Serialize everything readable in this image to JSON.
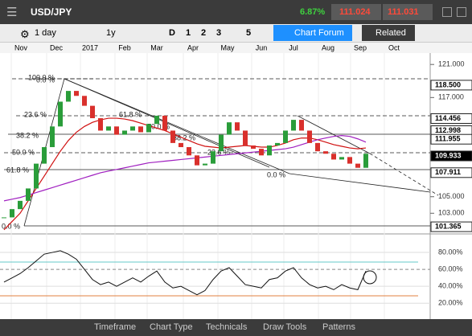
{
  "header": {
    "pair": "USD/JPY",
    "change": "6.87%",
    "sell": "111.024",
    "buy": "111.031"
  },
  "toolbar": {
    "interval": "1 day",
    "range": "1y",
    "periods": [
      "D",
      "1",
      "2",
      "3",
      "5"
    ],
    "forum": "Chart Forum",
    "related": "Related"
  },
  "bottom_bar": {
    "items": [
      "Timeframe",
      "Chart Type",
      "Technicals",
      "Draw Tools",
      "Patterns"
    ]
  },
  "chart_data": {
    "type": "candlestick",
    "months": [
      "Nov",
      "Dec",
      "2017",
      "Feb",
      "Mar",
      "Apr",
      "May",
      "Jun",
      "Jul",
      "Aug",
      "Sep",
      "Oct"
    ],
    "values": [
      102.5,
      103.5,
      104.5,
      106,
      109,
      111,
      113.5,
      116.5,
      117.8,
      117.2,
      116,
      114.5,
      113,
      113.5,
      112.5,
      113,
      113.5,
      112.8,
      113.8,
      114.8,
      113,
      111.5,
      111,
      110,
      108.8,
      109,
      110.5,
      112.5,
      114,
      113,
      111.2,
      110.8,
      110,
      111.2,
      111.5,
      113,
      114.3,
      113,
      111.5,
      110.5,
      110.2,
      109.5,
      109.8,
      109,
      108.5,
      110.2
    ],
    "red_average": [
      101,
      102,
      103,
      104.5,
      106,
      107.5,
      109,
      110.5,
      111.8,
      112.8,
      113.5,
      114,
      114.3,
      114.5,
      114.5,
      114.4,
      114.2,
      113.9,
      113.6,
      113.3,
      113,
      112.6,
      112.2,
      111.8,
      111.4,
      111.1,
      111,
      110.9,
      111,
      111.1,
      111.2,
      111.1,
      111,
      111,
      111.2,
      111.5,
      111.9,
      112.1,
      112.1,
      111.9,
      111.6,
      111.3,
      111.1,
      110.9,
      110.8,
      110.9
    ],
    "purple_average": [
      104.5,
      104.7,
      104.9,
      105.2,
      105.5,
      105.8,
      106.1,
      106.4,
      106.7,
      107,
      107.3,
      107.6,
      107.9,
      108.1,
      108.3,
      108.5,
      108.7,
      108.9,
      109.1,
      109.2,
      109.3,
      109.4,
      109.5,
      109.6,
      109.7,
      109.8,
      109.9,
      110,
      110.1,
      110.2,
      110.3,
      110.4,
      110.5,
      110.6,
      110.7,
      110.8,
      111,
      111.3,
      111.6,
      111.9,
      112.1,
      112.3,
      112.4,
      112.3,
      112,
      111.6
    ],
    "ylim": [
      100.5,
      121.7
    ],
    "yticks": [
      {
        "value": 121,
        "label": "121.000"
      },
      {
        "value": 117,
        "label": "117.000"
      },
      {
        "value": 105,
        "label": "105.000"
      },
      {
        "value": 103,
        "label": "103.000"
      }
    ],
    "price_tags": [
      {
        "value": 118.5,
        "label": "118.500"
      },
      {
        "value": 114.456,
        "label": "114.456"
      },
      {
        "value": 112.998,
        "label": "112.998"
      },
      {
        "value": 111.955,
        "label": "111.955"
      },
      {
        "value": 109.933,
        "label": "109.933"
      },
      {
        "value": 107.911,
        "label": "107.911"
      },
      {
        "value": 101.365,
        "label": "101.365"
      }
    ],
    "fib_labels": [
      "100.0 %",
      "0.0 %",
      "23.6 %",
      "38.2 %",
      "50.0 %",
      "61.8 %",
      "0.0 %",
      "61.8 %",
      "50.0 %",
      "38.2 %",
      "23.6 %",
      "0.0 %"
    ],
    "rsi": [
      45,
      50,
      55,
      62,
      70,
      78,
      80,
      82,
      78,
      72,
      60,
      48,
      42,
      45,
      40,
      45,
      50,
      45,
      52,
      58,
      45,
      38,
      40,
      35,
      30,
      35,
      48,
      58,
      62,
      52,
      42,
      40,
      38,
      48,
      50,
      58,
      62,
      50,
      42,
      38,
      40,
      36,
      42,
      38,
      36,
      58
    ],
    "rsi_ylim": [
      5,
      100
    ],
    "rsi_yticks": [
      {
        "value": 80,
        "label": "80.00%"
      },
      {
        "value": 60,
        "label": "60.00%"
      },
      {
        "value": 40,
        "label": "40.00%"
      },
      {
        "value": 20,
        "label": "20.00%"
      }
    ]
  }
}
